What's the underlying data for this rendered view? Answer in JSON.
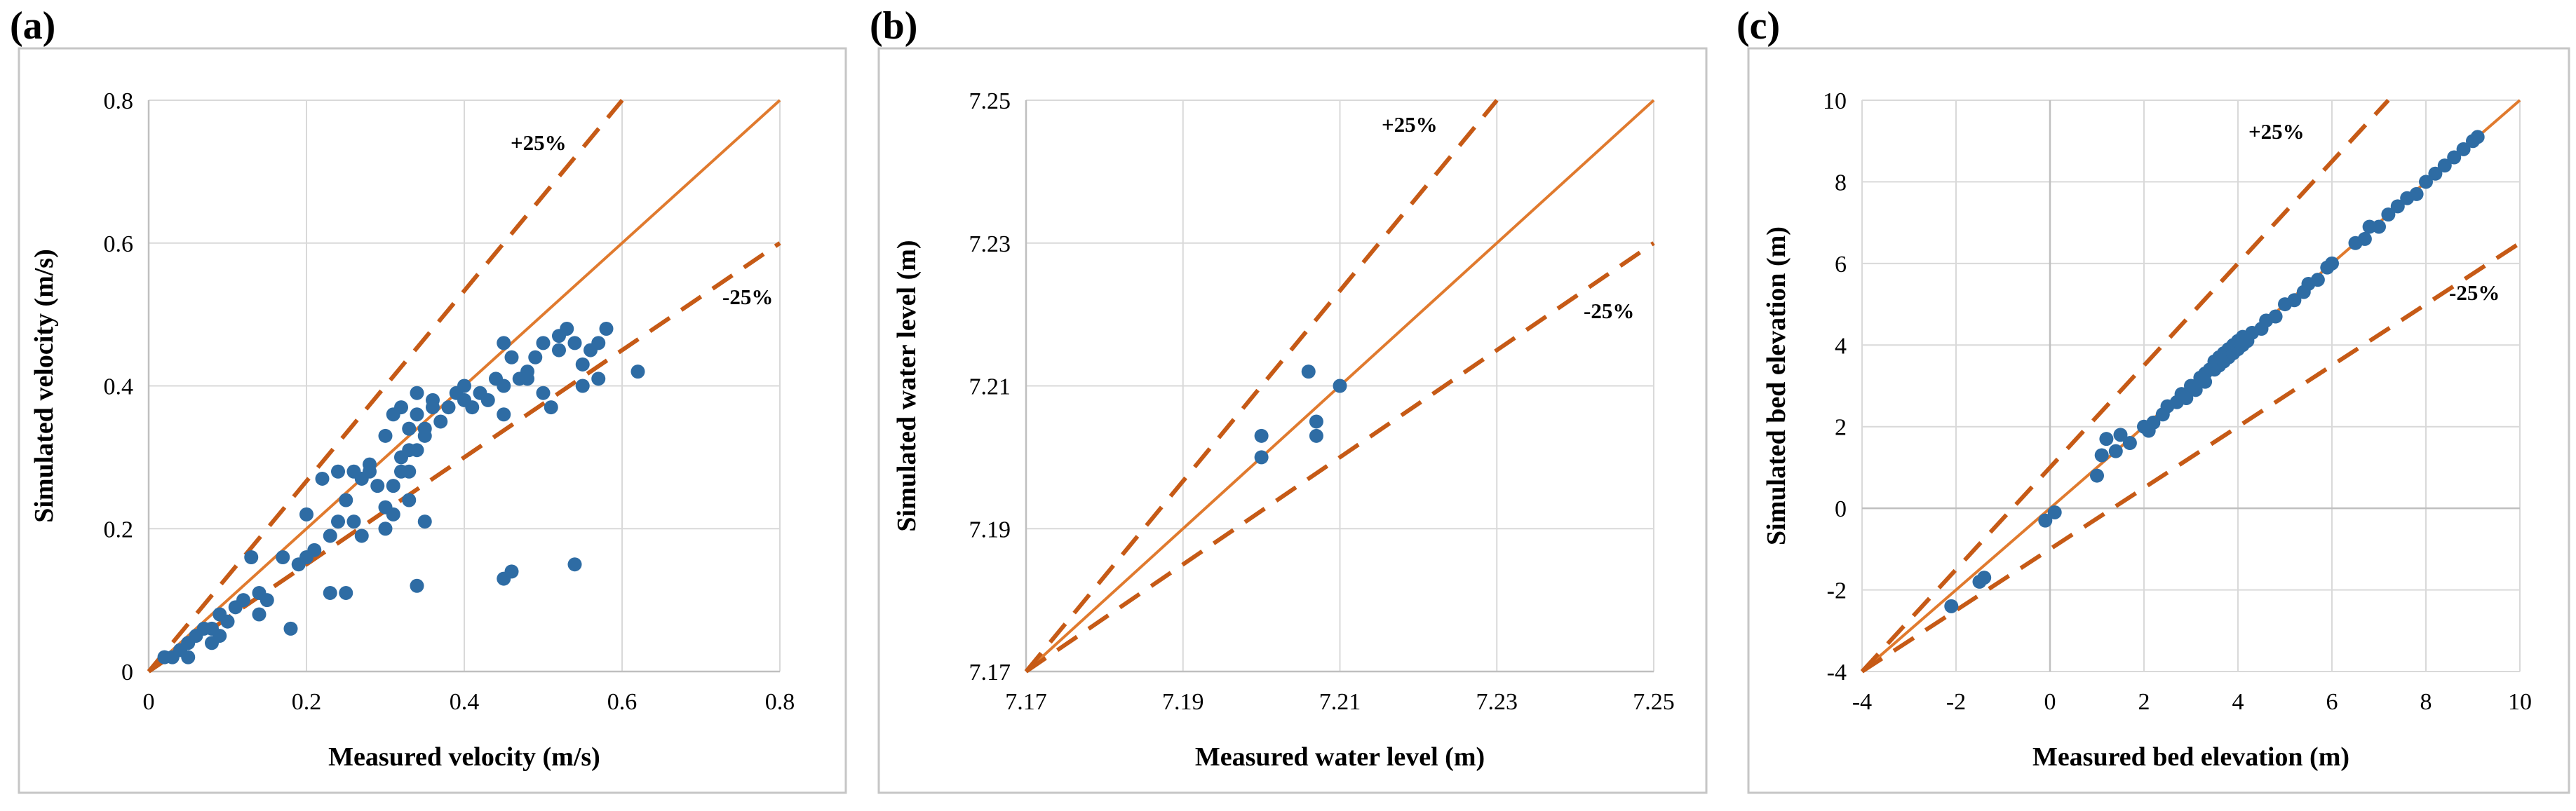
{
  "colors": {
    "points": "#2e6ca4",
    "ideal_line": "#e07a2e",
    "band_line": "#c65a16"
  },
  "panels": [
    {
      "letter": "(a)"
    },
    {
      "letter": "(b)"
    },
    {
      "letter": "(c)"
    }
  ],
  "chart_data": [
    {
      "type": "scatter",
      "panel": "(a)",
      "xlabel": "Measured velocity (m/s)",
      "ylabel": "Simulated velocity (m/s)",
      "xlim": [
        0,
        0.8
      ],
      "ylim": [
        0,
        0.8
      ],
      "xticks": [
        0,
        0.2,
        0.4,
        0.6,
        0.8
      ],
      "yticks": [
        0,
        0.2,
        0.4,
        0.6,
        0.8
      ],
      "xtick_labels": [
        "0",
        "0.2",
        "0.4",
        "0.6",
        "0.8"
      ],
      "ytick_labels": [
        "0",
        "0.2",
        "0.4",
        "0.6",
        "0.8"
      ],
      "reference_lines": [
        {
          "label": "",
          "slope": 1.0,
          "style": "solid"
        },
        {
          "label": "+25%",
          "slope": 1.333,
          "style": "dashed"
        },
        {
          "label": "-25%",
          "slope": 0.75,
          "style": "dashed"
        }
      ],
      "points": [
        [
          0.02,
          0.02
        ],
        [
          0.03,
          0.02
        ],
        [
          0.04,
          0.03
        ],
        [
          0.05,
          0.04
        ],
        [
          0.05,
          0.02
        ],
        [
          0.06,
          0.05
        ],
        [
          0.07,
          0.06
        ],
        [
          0.08,
          0.06
        ],
        [
          0.08,
          0.04
        ],
        [
          0.09,
          0.08
        ],
        [
          0.09,
          0.05
        ],
        [
          0.1,
          0.07
        ],
        [
          0.11,
          0.09
        ],
        [
          0.12,
          0.1
        ],
        [
          0.13,
          0.16
        ],
        [
          0.14,
          0.08
        ],
        [
          0.14,
          0.11
        ],
        [
          0.15,
          0.1
        ],
        [
          0.17,
          0.16
        ],
        [
          0.18,
          0.06
        ],
        [
          0.19,
          0.15
        ],
        [
          0.2,
          0.16
        ],
        [
          0.2,
          0.22
        ],
        [
          0.21,
          0.17
        ],
        [
          0.22,
          0.27
        ],
        [
          0.23,
          0.19
        ],
        [
          0.23,
          0.11
        ],
        [
          0.24,
          0.28
        ],
        [
          0.24,
          0.21
        ],
        [
          0.25,
          0.11
        ],
        [
          0.25,
          0.24
        ],
        [
          0.26,
          0.21
        ],
        [
          0.27,
          0.19
        ],
        [
          0.27,
          0.27
        ],
        [
          0.28,
          0.28
        ],
        [
          0.29,
          0.26
        ],
        [
          0.3,
          0.23
        ],
        [
          0.3,
          0.33
        ],
        [
          0.31,
          0.36
        ],
        [
          0.31,
          0.26
        ],
        [
          0.32,
          0.3
        ],
        [
          0.32,
          0.37
        ],
        [
          0.33,
          0.34
        ],
        [
          0.33,
          0.31
        ],
        [
          0.34,
          0.36
        ],
        [
          0.34,
          0.39
        ],
        [
          0.35,
          0.34
        ],
        [
          0.35,
          0.33
        ],
        [
          0.36,
          0.37
        ],
        [
          0.36,
          0.38
        ],
        [
          0.31,
          0.22
        ],
        [
          0.32,
          0.28
        ],
        [
          0.33,
          0.24
        ],
        [
          0.34,
          0.12
        ],
        [
          0.35,
          0.21
        ],
        [
          0.3,
          0.2
        ],
        [
          0.28,
          0.29
        ],
        [
          0.26,
          0.28
        ],
        [
          0.33,
          0.28
        ],
        [
          0.34,
          0.31
        ],
        [
          0.37,
          0.35
        ],
        [
          0.38,
          0.37
        ],
        [
          0.39,
          0.39
        ],
        [
          0.4,
          0.4
        ],
        [
          0.41,
          0.37
        ],
        [
          0.42,
          0.39
        ],
        [
          0.43,
          0.38
        ],
        [
          0.44,
          0.41
        ],
        [
          0.45,
          0.46
        ],
        [
          0.45,
          0.4
        ],
        [
          0.46,
          0.44
        ],
        [
          0.47,
          0.41
        ],
        [
          0.48,
          0.42
        ],
        [
          0.49,
          0.44
        ],
        [
          0.5,
          0.46
        ],
        [
          0.5,
          0.39
        ],
        [
          0.51,
          0.37
        ],
        [
          0.52,
          0.45
        ],
        [
          0.52,
          0.47
        ],
        [
          0.53,
          0.48
        ],
        [
          0.54,
          0.46
        ],
        [
          0.55,
          0.43
        ],
        [
          0.55,
          0.4
        ],
        [
          0.56,
          0.45
        ],
        [
          0.57,
          0.46
        ],
        [
          0.58,
          0.48
        ],
        [
          0.57,
          0.41
        ],
        [
          0.62,
          0.42
        ],
        [
          0.45,
          0.13
        ],
        [
          0.46,
          0.14
        ],
        [
          0.54,
          0.15
        ],
        [
          0.45,
          0.36
        ],
        [
          0.48,
          0.41
        ],
        [
          0.4,
          0.38
        ]
      ]
    },
    {
      "type": "scatter",
      "panel": "(b)",
      "xlabel": "Measured water level (m)",
      "ylabel": "Simulated water level (m)",
      "xlim": [
        7.17,
        7.25
      ],
      "ylim": [
        7.17,
        7.25
      ],
      "xticks": [
        7.17,
        7.19,
        7.21,
        7.23,
        7.25
      ],
      "yticks": [
        7.17,
        7.19,
        7.21,
        7.23,
        7.25
      ],
      "xtick_labels": [
        "7.17",
        "7.19",
        "7.21",
        "7.23",
        "7.25"
      ],
      "ytick_labels": [
        "7.17",
        "7.19",
        "7.21",
        "7.23",
        "7.25"
      ],
      "reference_lines": [
        {
          "label": "",
          "slope": 1.0,
          "style": "solid"
        },
        {
          "label": "+25%",
          "slope": 1.333,
          "style": "dashed"
        },
        {
          "label": "-25%",
          "slope": 0.75,
          "style": "dashed"
        }
      ],
      "points": [
        [
          7.2,
          7.2
        ],
        [
          7.2,
          7.203
        ],
        [
          7.206,
          7.212
        ],
        [
          7.207,
          7.205
        ],
        [
          7.207,
          7.203
        ],
        [
          7.21,
          7.21
        ]
      ]
    },
    {
      "type": "scatter",
      "panel": "(c)",
      "xlabel": "Measured bed elevation (m)",
      "ylabel": "Simulated bed elevation (m)",
      "xlim": [
        -4,
        10
      ],
      "ylim": [
        -4,
        10
      ],
      "xticks": [
        -4,
        -2,
        0,
        2,
        4,
        6,
        8,
        10
      ],
      "yticks": [
        -4,
        -2,
        0,
        2,
        4,
        6,
        8,
        10
      ],
      "xtick_labels": [
        "-4",
        "-2",
        "0",
        "2",
        "4",
        "6",
        "8",
        "10"
      ],
      "ytick_labels": [
        "-4",
        "-2",
        "0",
        "2",
        "4",
        "6",
        "8",
        "10"
      ],
      "reference_lines": [
        {
          "label": "",
          "slope": 1.0,
          "style": "solid"
        },
        {
          "label": "+25%",
          "slope": 1.25,
          "style": "dashed"
        },
        {
          "label": "-25%",
          "slope": 0.75,
          "style": "dashed"
        }
      ],
      "points": [
        [
          -2.1,
          -2.4
        ],
        [
          -1.5,
          -1.8
        ],
        [
          -1.4,
          -1.7
        ],
        [
          -0.1,
          -0.3
        ],
        [
          0.1,
          -0.1
        ],
        [
          1.0,
          0.8
        ],
        [
          1.1,
          1.3
        ],
        [
          1.2,
          1.7
        ],
        [
          1.4,
          1.4
        ],
        [
          1.5,
          1.8
        ],
        [
          1.7,
          1.6
        ],
        [
          2.0,
          2.0
        ],
        [
          2.1,
          1.9
        ],
        [
          2.2,
          2.1
        ],
        [
          2.4,
          2.3
        ],
        [
          2.5,
          2.5
        ],
        [
          2.7,
          2.6
        ],
        [
          2.8,
          2.8
        ],
        [
          2.9,
          2.7
        ],
        [
          3.0,
          3.0
        ],
        [
          3.1,
          2.9
        ],
        [
          3.2,
          3.2
        ],
        [
          3.3,
          3.1
        ],
        [
          3.3,
          3.3
        ],
        [
          3.4,
          3.4
        ],
        [
          3.5,
          3.4
        ],
        [
          3.5,
          3.6
        ],
        [
          3.6,
          3.5
        ],
        [
          3.6,
          3.7
        ],
        [
          3.7,
          3.6
        ],
        [
          3.7,
          3.8
        ],
        [
          3.8,
          3.7
        ],
        [
          3.8,
          3.9
        ],
        [
          3.9,
          3.8
        ],
        [
          3.9,
          4.0
        ],
        [
          4.0,
          3.9
        ],
        [
          4.0,
          4.1
        ],
        [
          4.1,
          4.0
        ],
        [
          4.1,
          4.2
        ],
        [
          4.2,
          4.1
        ],
        [
          4.3,
          4.3
        ],
        [
          4.5,
          4.4
        ],
        [
          4.6,
          4.6
        ],
        [
          4.8,
          4.7
        ],
        [
          5.0,
          5.0
        ],
        [
          5.2,
          5.1
        ],
        [
          5.4,
          5.3
        ],
        [
          5.5,
          5.5
        ],
        [
          5.7,
          5.6
        ],
        [
          5.9,
          5.9
        ],
        [
          6.0,
          6.0
        ],
        [
          6.5,
          6.5
        ],
        [
          6.7,
          6.6
        ],
        [
          6.8,
          6.9
        ],
        [
          7.0,
          6.9
        ],
        [
          7.2,
          7.2
        ],
        [
          7.4,
          7.4
        ],
        [
          7.6,
          7.6
        ],
        [
          7.8,
          7.7
        ],
        [
          8.0,
          8.0
        ],
        [
          8.2,
          8.2
        ],
        [
          8.4,
          8.4
        ],
        [
          8.6,
          8.6
        ],
        [
          8.8,
          8.8
        ],
        [
          9.0,
          9.0
        ],
        [
          9.1,
          9.1
        ]
      ]
    }
  ]
}
